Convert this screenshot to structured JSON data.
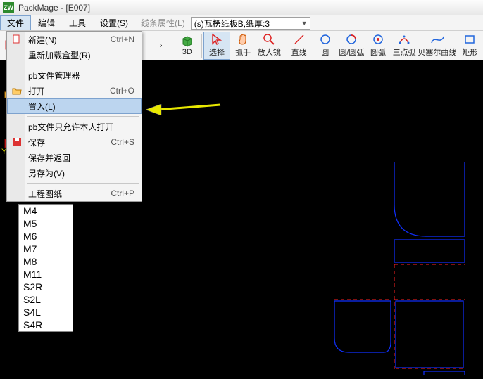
{
  "title": "PackMage - [E007]",
  "menubar": {
    "items": [
      "文件",
      "编辑",
      "工具",
      "设置(S)"
    ],
    "active_index": 0,
    "prop_label": "线条属性(L)",
    "material_selected": "(s)瓦楞纸板B,纸厚:3"
  },
  "dropdown": {
    "items": [
      {
        "label": "新建(N)",
        "shortcut": "Ctrl+N",
        "icon": "new"
      },
      {
        "label": "重新加载盒型(R)"
      },
      {
        "sep": true
      },
      {
        "label": "pb文件管理器"
      },
      {
        "label": "打开",
        "shortcut": "Ctrl+O",
        "icon": "open"
      },
      {
        "label": "置入(L)",
        "highlight": true
      },
      {
        "sep": true
      },
      {
        "label": "pb文件只允许本人打开"
      },
      {
        "label": "保存",
        "shortcut": "Ctrl+S",
        "icon": "save"
      },
      {
        "label": "保存并返回"
      },
      {
        "label": "另存为(V)"
      },
      {
        "sep": true
      },
      {
        "label": "工程图纸",
        "shortcut": "Ctrl+P"
      }
    ]
  },
  "toolbar": {
    "buttons": [
      {
        "label": ">",
        "icon": "chevron",
        "sel": false
      },
      {
        "label": "3D",
        "icon": "cube3d",
        "sel": false
      },
      {
        "sep": true
      },
      {
        "label": "选择",
        "icon": "select",
        "sel": true
      },
      {
        "label": "抓手",
        "icon": "hand",
        "sel": false
      },
      {
        "label": "放大镜",
        "icon": "zoom",
        "sel": false
      },
      {
        "sep": true
      },
      {
        "label": "直线",
        "icon": "line",
        "sel": false
      },
      {
        "label": "圆",
        "icon": "circle",
        "sel": false
      },
      {
        "label": "圆/圆弧",
        "icon": "arc1",
        "sel": false
      },
      {
        "label": "圆弧",
        "icon": "arc2",
        "sel": false
      },
      {
        "label": "三点弧",
        "icon": "arc3",
        "sel": false
      },
      {
        "label": "贝塞尔曲线",
        "icon": "bezier",
        "sel": false
      },
      {
        "label": "矩形",
        "icon": "rect",
        "sel": false
      }
    ]
  },
  "sidelist": [
    "M4",
    "M5",
    "M6",
    "M7",
    "M8",
    "M11",
    "S2R",
    "S2L",
    "S4L",
    "S4R"
  ],
  "arrow_color": "#e8e800",
  "drawing": {
    "blue": "#1030ff",
    "red": "#ff2020"
  },
  "ylabel": "Y"
}
